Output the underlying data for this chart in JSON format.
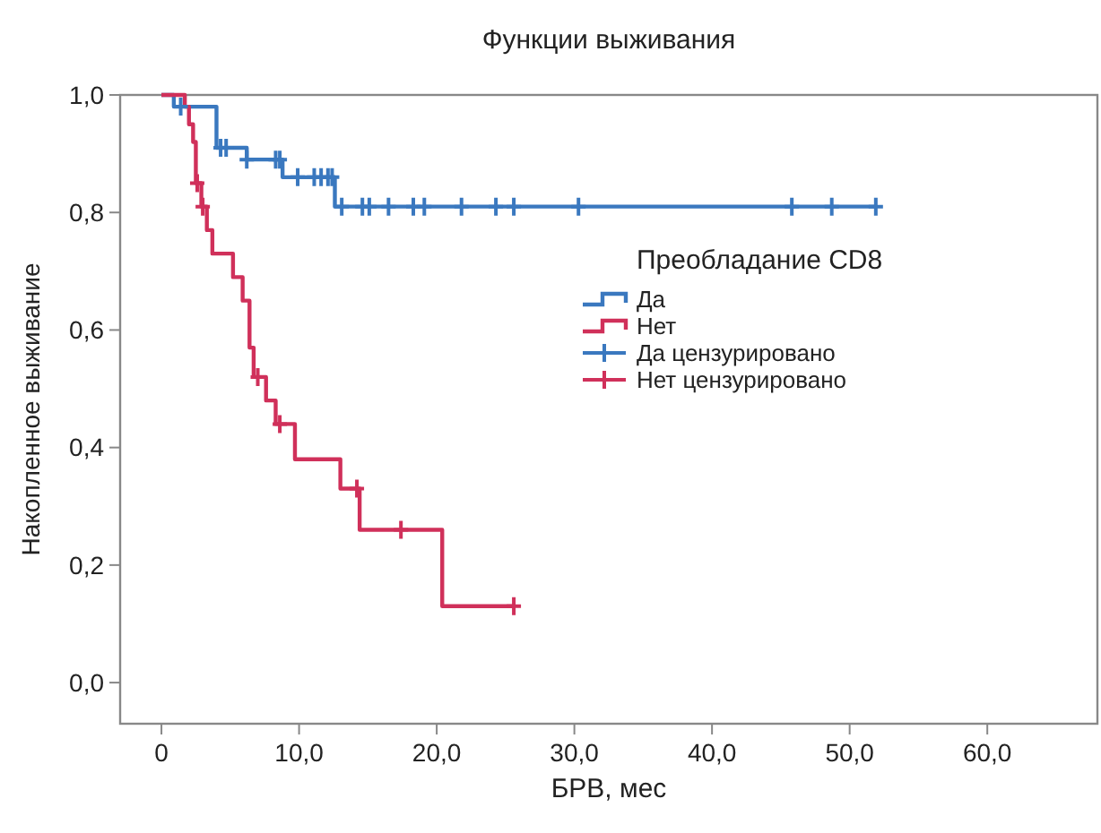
{
  "chart_data": {
    "type": "step",
    "title": "Функции выживания",
    "xlabel": "БРВ, мес",
    "ylabel": "Накопленное выживание",
    "legend_title": "Преобладание CD8",
    "legend": "right",
    "grid": false,
    "xlim": [
      -3,
      68
    ],
    "xticks": [
      {
        "value": 0,
        "label": "0"
      },
      {
        "value": 10,
        "label": "10,0"
      },
      {
        "value": 20,
        "label": "20,0"
      },
      {
        "value": 30,
        "label": "30,0"
      },
      {
        "value": 40,
        "label": "40,0"
      },
      {
        "value": 50,
        "label": "50,0"
      },
      {
        "value": 60,
        "label": "60,0"
      }
    ],
    "ylim": [
      -0.07,
      1
    ],
    "yticks": [
      {
        "value": 0,
        "label": "0,0"
      },
      {
        "value": 0.2,
        "label": "0,2"
      },
      {
        "value": 0.4,
        "label": "0,4"
      },
      {
        "value": 0.6,
        "label": "0,6"
      },
      {
        "value": 0.8,
        "label": "0,8"
      },
      {
        "value": 1,
        "label": "1,0"
      }
    ],
    "series": [
      {
        "name": "Да",
        "color": "#3a78bf",
        "x": [
          0,
          0.9,
          4.0,
          6.2,
          8.8,
          12.6,
          51.9
        ],
        "values": [
          1,
          0.98,
          0.91,
          0.89,
          0.86,
          0.81,
          0.81
        ]
      },
      {
        "name": "Нет",
        "color": "#d0305a",
        "x": [
          0,
          1.7,
          2.0,
          2.3,
          2.5,
          2.9,
          3.3,
          3.7,
          5.2,
          5.9,
          6.4,
          6.7,
          7.6,
          8.3,
          9.7,
          13.0,
          14.4,
          20.4,
          25.6
        ],
        "values": [
          1,
          0.98,
          0.95,
          0.92,
          0.85,
          0.81,
          0.77,
          0.73,
          0.69,
          0.65,
          0.57,
          0.52,
          0.48,
          0.44,
          0.38,
          0.33,
          0.26,
          0.13,
          0.13
        ]
      },
      {
        "name": "Да цензурировано",
        "type": "scatter",
        "marker": "cross",
        "color": "#3a78bf",
        "x": [
          1.4,
          4.3,
          4.7,
          6.2,
          8.3,
          8.6,
          9.9,
          11.1,
          11.6,
          12.1,
          12.4,
          13.1,
          14.6,
          15.1,
          16.5,
          18.3,
          19.1,
          21.8,
          24.3,
          25.6,
          30.3,
          45.8,
          48.7,
          51.9
        ],
        "values": [
          0.98,
          0.91,
          0.91,
          0.89,
          0.89,
          0.89,
          0.86,
          0.86,
          0.86,
          0.86,
          0.86,
          0.81,
          0.81,
          0.81,
          0.81,
          0.81,
          0.81,
          0.81,
          0.81,
          0.81,
          0.81,
          0.81,
          0.81,
          0.81
        ]
      },
      {
        "name": "Нет цензурировано",
        "type": "scatter",
        "marker": "cross",
        "color": "#d0305a",
        "x": [
          2.6,
          3.0,
          7.0,
          8.6,
          14.2,
          17.4,
          25.6
        ],
        "values": [
          0.85,
          0.81,
          0.52,
          0.44,
          0.33,
          0.26,
          0.13
        ]
      }
    ]
  }
}
